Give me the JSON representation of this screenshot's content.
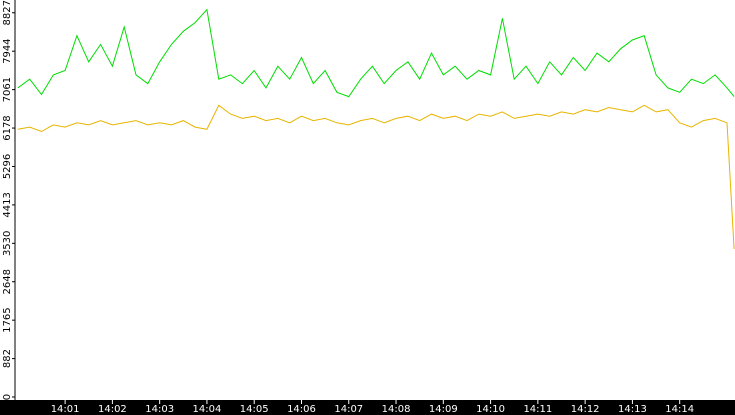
{
  "chart_data": {
    "type": "line",
    "x": [
      0,
      0.25,
      0.5,
      0.75,
      1,
      1.25,
      1.5,
      1.75,
      2,
      2.25,
      2.5,
      2.75,
      3,
      3.25,
      3.5,
      3.75,
      4,
      4.25,
      4.5,
      4.75,
      5,
      5.25,
      5.5,
      5.75,
      6,
      6.25,
      6.5,
      6.75,
      7,
      7.25,
      7.5,
      7.75,
      8,
      8.25,
      8.5,
      8.75,
      9,
      9.25,
      9.5,
      9.75,
      10,
      10.25,
      10.5,
      10.75,
      11,
      11.25,
      11.5,
      11.75,
      12,
      12.25,
      12.5,
      12.75,
      13,
      13.25,
      13.5,
      13.75,
      14,
      14.25,
      14.5,
      14.75,
      15,
      15.15
    ],
    "series": [
      {
        "color": "#00dd00",
        "values": [
          7100,
          7300,
          6950,
          7400,
          7500,
          8300,
          7700,
          8100,
          7600,
          8500,
          7400,
          7200,
          7700,
          8100,
          8400,
          8600,
          8900,
          7300,
          7400,
          7200,
          7500,
          7100,
          7600,
          7300,
          7800,
          7200,
          7500,
          7000,
          6900,
          7300,
          7600,
          7200,
          7500,
          7700,
          7300,
          7900,
          7400,
          7600,
          7300,
          7500,
          7400,
          8700,
          7300,
          7600,
          7200,
          7700,
          7400,
          7800,
          7500,
          7900,
          7700,
          8000,
          8200,
          8300,
          7400,
          7100,
          7000,
          7300,
          7200,
          7400,
          7100,
          6900
        ]
      },
      {
        "color": "#e8b400",
        "values": [
          6150,
          6200,
          6100,
          6250,
          6200,
          6300,
          6250,
          6350,
          6250,
          6300,
          6350,
          6250,
          6300,
          6250,
          6350,
          6200,
          6150,
          6700,
          6500,
          6400,
          6450,
          6350,
          6400,
          6300,
          6450,
          6350,
          6400,
          6300,
          6250,
          6350,
          6400,
          6300,
          6400,
          6450,
          6350,
          6500,
          6400,
          6450,
          6350,
          6500,
          6450,
          6550,
          6400,
          6450,
          6500,
          6450,
          6550,
          6500,
          6600,
          6550,
          6650,
          6600,
          6550,
          6700,
          6550,
          6600,
          6300,
          6200,
          6350,
          6400,
          6300,
          3400
        ]
      }
    ],
    "xlim": [
      -0.06,
      15.17
    ],
    "xticks": [
      {
        "value": 1,
        "label": "14:01"
      },
      {
        "value": 2,
        "label": "14:02"
      },
      {
        "value": 3,
        "label": "14:03"
      },
      {
        "value": 4,
        "label": "14:04"
      },
      {
        "value": 5,
        "label": "14:05"
      },
      {
        "value": 6,
        "label": "14:06"
      },
      {
        "value": 7,
        "label": "14:07"
      },
      {
        "value": 8,
        "label": "14:08"
      },
      {
        "value": 9,
        "label": "14:09"
      },
      {
        "value": 10,
        "label": "14:10"
      },
      {
        "value": 11,
        "label": "14:11"
      },
      {
        "value": 12,
        "label": "14:12"
      },
      {
        "value": 13,
        "label": "14:13"
      },
      {
        "value": 14,
        "label": "14:14"
      }
    ],
    "ylim": [
      0,
      9120
    ],
    "yticks": [
      0,
      882,
      1765,
      2648,
      3530,
      4413,
      5296,
      6178,
      7061,
      7944,
      8827
    ]
  }
}
